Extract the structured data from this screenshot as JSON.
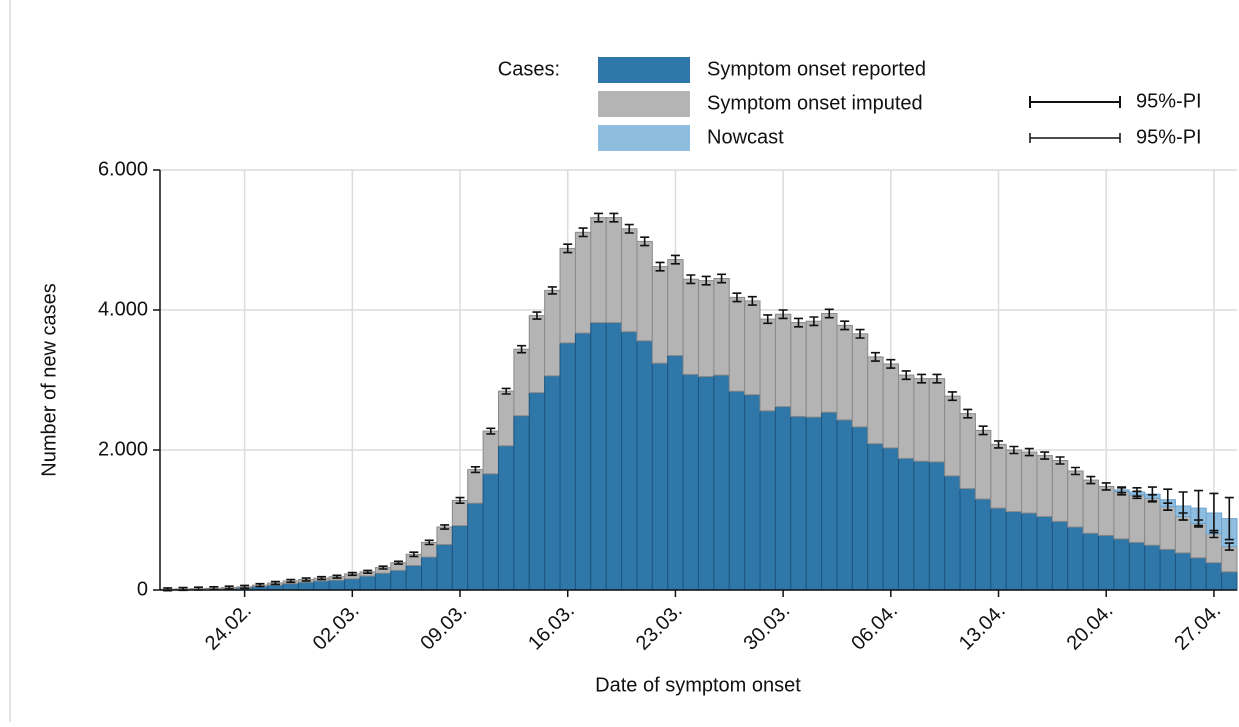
{
  "chart_data": {
    "type": "stacked_bar_errors",
    "legend_title": "Cases:",
    "pi_label": "95%-PI",
    "xlabel": "Date of symptom onset",
    "ylabel": "Number of new cases",
    "categories": [
      null,
      null,
      null,
      null,
      null,
      "24.02.",
      null,
      null,
      null,
      null,
      null,
      null,
      "02.03.",
      null,
      null,
      null,
      null,
      null,
      null,
      "09.03.",
      null,
      null,
      null,
      null,
      null,
      null,
      "16.03.",
      null,
      null,
      null,
      null,
      null,
      null,
      "23.03.",
      null,
      null,
      null,
      null,
      null,
      null,
      "30.03.",
      null,
      null,
      null,
      null,
      null,
      null,
      "06.04.",
      null,
      null,
      null,
      null,
      null,
      null,
      "13.04.",
      null,
      null,
      null,
      null,
      null,
      null,
      "20.04.",
      null,
      null,
      null,
      null,
      null,
      null,
      "27.04.",
      null
    ],
    "series": [
      {
        "name": "Symptom onset reported",
        "color": "#2e77a8",
        "values": [
          5,
          8,
          10,
          15,
          20,
          30,
          50,
          70,
          90,
          110,
          130,
          140,
          160,
          200,
          240,
          280,
          350,
          470,
          650,
          920,
          1240,
          1660,
          2060,
          2490,
          2820,
          3060,
          3530,
          3670,
          3820,
          3820,
          3690,
          3560,
          3240,
          3350,
          3080,
          3050,
          3070,
          2840,
          2790,
          2560,
          2620,
          2480,
          2470,
          2540,
          2430,
          2330,
          2090,
          2030,
          1880,
          1840,
          1830,
          1630,
          1450,
          1300,
          1170,
          1120,
          1100,
          1050,
          980,
          900,
          810,
          780,
          730,
          680,
          640,
          580,
          530,
          460,
          390,
          260
        ]
      },
      {
        "name": "Symptom onset imputed",
        "color": "#b4b4b4",
        "values": [
          5,
          7,
          10,
          10,
          15,
          15,
          20,
          30,
          40,
          40,
          40,
          50,
          70,
          60,
          80,
          110,
          160,
          210,
          250,
          360,
          480,
          610,
          780,
          950,
          1100,
          1220,
          1350,
          1440,
          1500,
          1500,
          1470,
          1420,
          1380,
          1370,
          1360,
          1370,
          1380,
          1340,
          1340,
          1310,
          1320,
          1340,
          1370,
          1410,
          1350,
          1330,
          1240,
          1200,
          1190,
          1180,
          1190,
          1140,
          1070,
          980,
          910,
          880,
          870,
          870,
          870,
          800,
          760,
          700,
          680,
          680,
          670,
          610,
          520,
          490,
          410,
          360
        ],
        "errors": [
          20,
          20,
          20,
          20,
          20,
          20,
          20,
          20,
          20,
          20,
          20,
          20,
          20,
          20,
          20,
          20,
          30,
          30,
          30,
          40,
          40,
          40,
          40,
          50,
          50,
          50,
          60,
          60,
          60,
          60,
          60,
          60,
          60,
          60,
          60,
          60,
          60,
          60,
          60,
          60,
          60,
          60,
          60,
          60,
          60,
          60,
          60,
          60,
          60,
          60,
          60,
          60,
          60,
          60,
          50,
          50,
          50,
          50,
          50,
          50,
          50,
          50,
          50,
          50,
          50,
          50,
          50,
          50,
          50,
          50
        ]
      },
      {
        "name": "Nowcast",
        "color": "#8fbde0",
        "values": [
          null,
          null,
          null,
          null,
          null,
          null,
          null,
          null,
          null,
          null,
          null,
          null,
          null,
          null,
          null,
          null,
          null,
          null,
          null,
          null,
          null,
          null,
          null,
          null,
          null,
          null,
          null,
          null,
          null,
          null,
          null,
          null,
          null,
          null,
          null,
          null,
          null,
          null,
          null,
          null,
          null,
          null,
          null,
          null,
          null,
          null,
          null,
          null,
          null,
          null,
          null,
          null,
          null,
          null,
          null,
          null,
          null,
          null,
          null,
          null,
          null,
          null,
          20,
          40,
          60,
          100,
          150,
          220,
          300,
          400
        ],
        "errors": [
          null,
          null,
          null,
          null,
          null,
          null,
          null,
          null,
          null,
          null,
          null,
          null,
          null,
          null,
          null,
          null,
          null,
          null,
          null,
          null,
          null,
          null,
          null,
          null,
          null,
          null,
          null,
          null,
          null,
          null,
          null,
          null,
          null,
          null,
          null,
          null,
          null,
          null,
          null,
          null,
          null,
          null,
          null,
          null,
          null,
          null,
          null,
          null,
          null,
          null,
          null,
          null,
          null,
          null,
          null,
          null,
          null,
          null,
          null,
          null,
          null,
          null,
          40,
          60,
          100,
          150,
          200,
          250,
          280,
          300
        ]
      }
    ],
    "ylim": [
      0,
      6000
    ],
    "yticks": [
      0,
      {
        "value": 2000,
        "label": "2.000"
      },
      {
        "value": 4000,
        "label": "4.000"
      },
      {
        "value": 6000,
        "label": "6.000"
      }
    ],
    "grid": true
  }
}
